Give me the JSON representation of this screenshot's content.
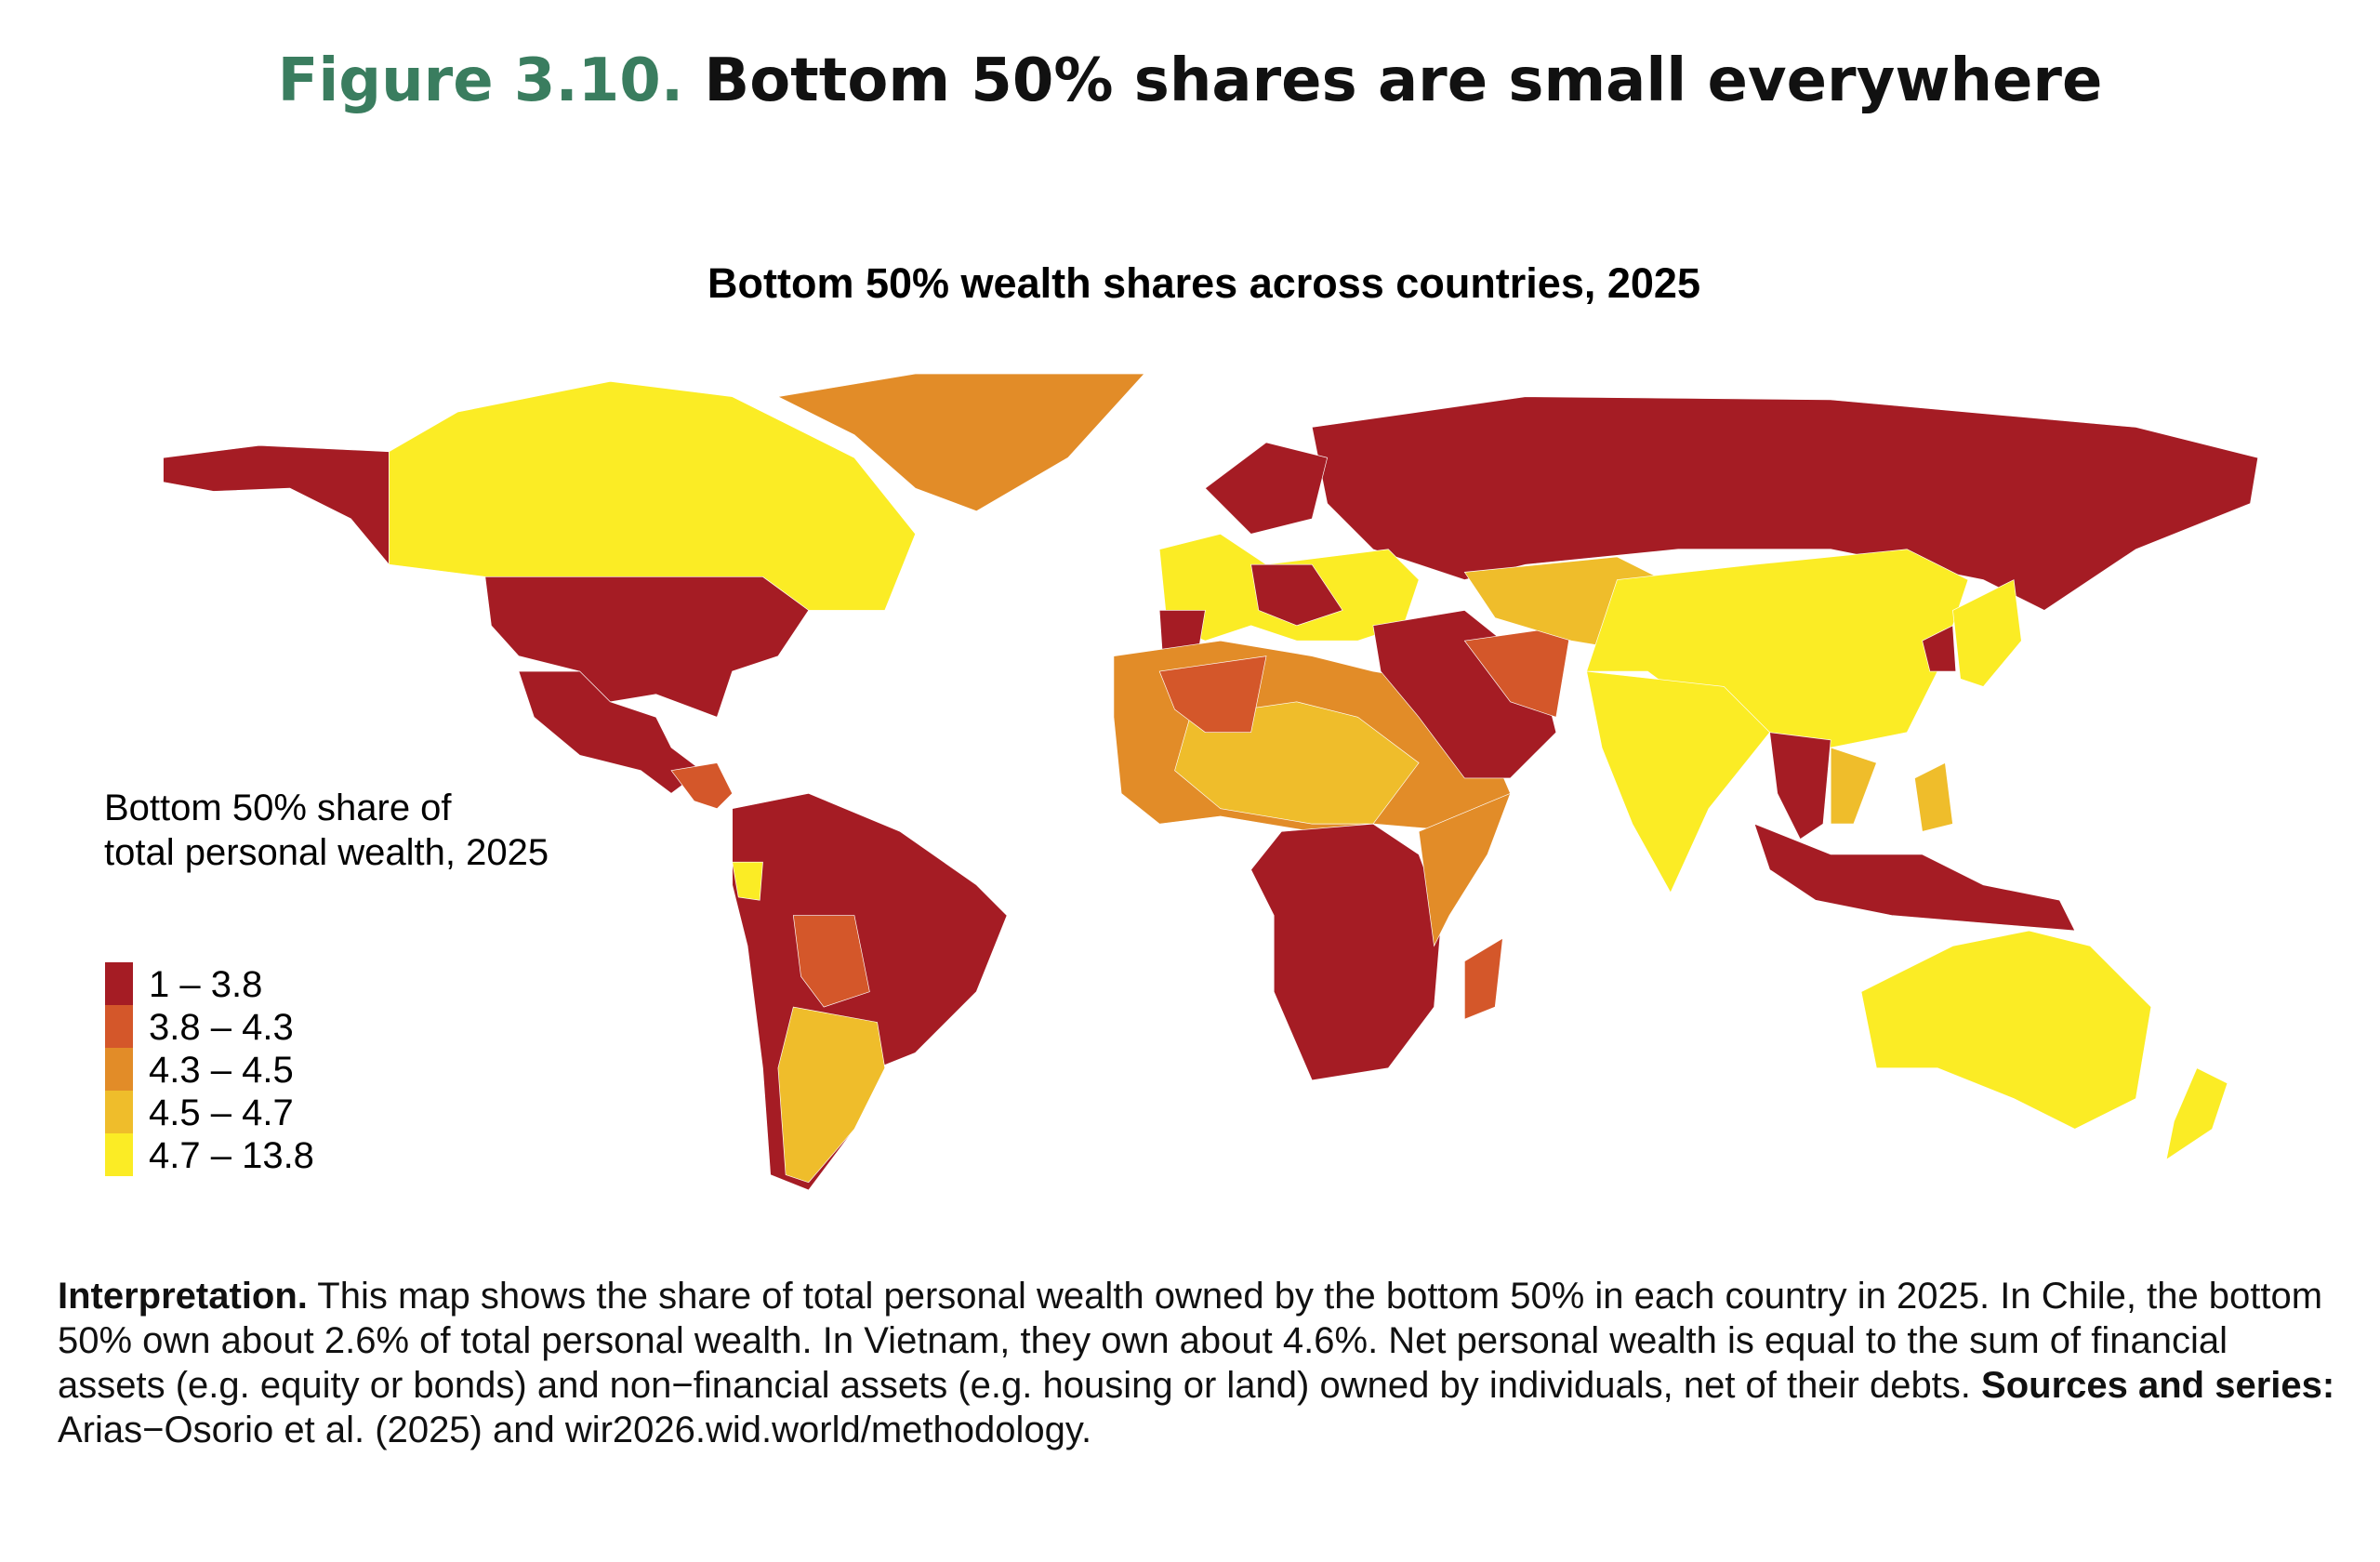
{
  "title": {
    "label": "Figure 3.10.",
    "text": "Bottom 50% shares are small everywhere"
  },
  "map": {
    "subtitle": "Bottom 50% wealth shares across countries, 2025",
    "legend": {
      "title": [
        "Bottom 50% share of",
        "total personal wealth, 2025"
      ],
      "classes": [
        {
          "label": "1 – 3.8",
          "color": "#a51c24"
        },
        {
          "label": "3.8 – 4.3",
          "color": "#d4572a"
        },
        {
          "label": "4.3 – 4.5",
          "color": "#e28c28"
        },
        {
          "label": "4.5 – 4.7",
          "color": "#efbd2b"
        },
        {
          "label": "4.7 – 13.8",
          "color": "#fbec25"
        }
      ]
    }
  },
  "notes": [
    {
      "text": "Interpretation.",
      "bold": true
    },
    {
      "text": " This map shows the share of total personal wealth owned by the bottom 50% in each country in 2025. In Chile, the bottom 50% own about 2.6% of total personal wealth. In Vietnam, they own about 4.6%. Net personal wealth is equal to the sum of financial assets (e.g. equity or bonds) and non−financial assets (e.g. housing or land) owned by individuals, net of their debts. ",
      "bold": false
    },
    {
      "text": "Sources and series:",
      "bold": true
    },
    {
      "text": " Arias−Osorio et al. (2025) and wir2026.wid.world/methodology.",
      "bold": false
    }
  ]
}
